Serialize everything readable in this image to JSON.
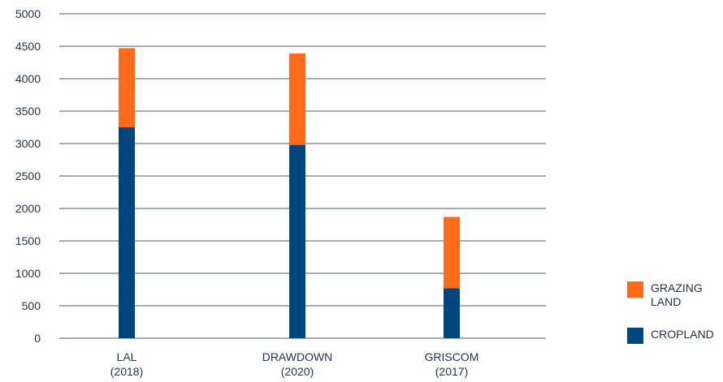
{
  "chart_data": {
    "type": "bar",
    "stacked": true,
    "title": "",
    "xlabel": "",
    "ylabel": "",
    "ylim": [
      0,
      5000
    ],
    "yticks": [
      0,
      500,
      1000,
      1500,
      2000,
      2500,
      3000,
      3500,
      4000,
      4500,
      5000
    ],
    "grid": true,
    "legend_position": "right",
    "categories": [
      [
        "LAL",
        "(2018)"
      ],
      [
        "DRAWDOWN",
        "(2020)"
      ],
      [
        "GRISCOM",
        "(2017)"
      ]
    ],
    "series": [
      {
        "name": "CROPLAND",
        "color": "#00467f",
        "values": [
          3250,
          2980,
          770
        ]
      },
      {
        "name": "GRAZING LAND",
        "color": "#ff6b1a",
        "values": [
          1220,
          1410,
          1100
        ]
      }
    ],
    "legend": [
      {
        "label": "GRAZING LAND",
        "color": "#ff6b1a"
      },
      {
        "label": "CROPLAND",
        "color": "#00467f"
      }
    ]
  }
}
